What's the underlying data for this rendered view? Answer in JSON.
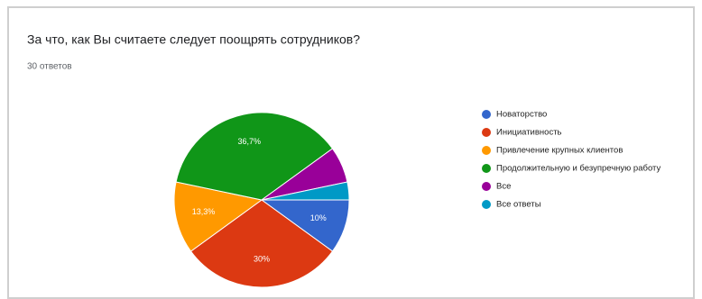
{
  "chart_data": {
    "type": "pie",
    "title": "За что, как Вы считаете следует поощрять сотрудников?",
    "subtitle": "30 ответов",
    "categories": [
      "Новаторство",
      "Инициативность",
      "Привлечение крупных клиентов",
      "Продолжительную и безупречную работу",
      "Все",
      "Все ответы"
    ],
    "values": [
      10,
      30,
      13.3,
      36.7,
      6.7,
      3.3
    ],
    "value_labels": [
      "10%",
      "30%",
      "13,3%",
      "36,7%",
      null,
      null
    ],
    "colors": [
      "#3366cc",
      "#dc3912",
      "#ff9900",
      "#109618",
      "#990099",
      "#0099c6"
    ],
    "legend": "right"
  }
}
